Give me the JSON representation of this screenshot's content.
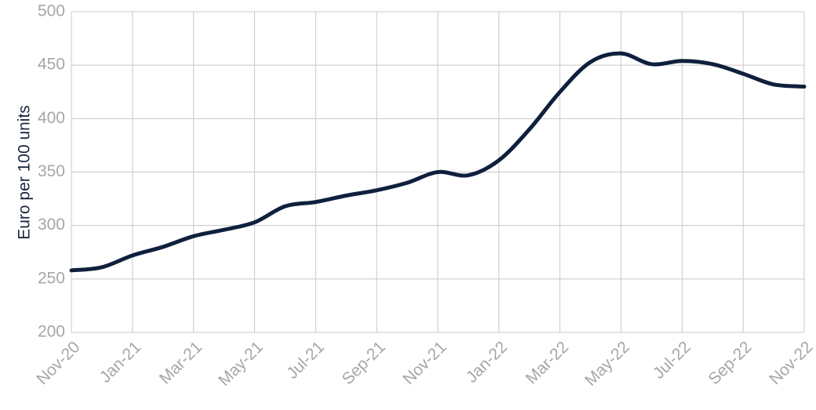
{
  "chart_data": {
    "type": "line",
    "y_label": "Euro per 100 units",
    "categories": [
      "Nov-20",
      null,
      "Jan-21",
      null,
      "Mar-21",
      null,
      "May-21",
      null,
      "Jul-21",
      null,
      "Sep-21",
      null,
      "Nov-21",
      null,
      "Jan-22",
      null,
      "Mar-22",
      null,
      "May-22",
      null,
      "Jul-22",
      null,
      "Sep-22",
      null,
      "Nov-22"
    ],
    "series": [
      {
        "color": "#0f1f3d",
        "values": [
          258,
          261,
          272,
          280,
          290,
          296,
          303,
          318,
          322,
          328,
          333,
          340,
          350,
          347,
          361,
          390,
          425,
          453,
          461,
          451,
          454,
          451,
          442,
          432,
          430
        ]
      }
    ],
    "ylim": [
      200,
      500
    ],
    "yticks": [
      200,
      250,
      300,
      350,
      400,
      450,
      500
    ],
    "grid": true
  }
}
